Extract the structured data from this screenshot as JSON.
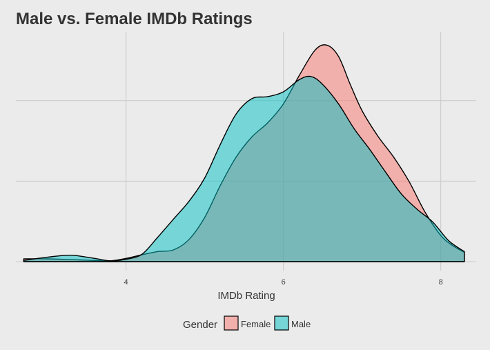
{
  "chart_data": {
    "type": "area",
    "title": "Male vs. Female IMDb Ratings",
    "xlabel": "IMDb Rating",
    "ylabel": "",
    "xlim": [
      2.6,
      8.45
    ],
    "ylim": [
      0,
      0.6
    ],
    "x_ticks": [
      4,
      6,
      8
    ],
    "x_tick_labels": [
      "4",
      "6",
      "8"
    ],
    "y_gridlines": [
      0,
      0.2,
      0.4
    ],
    "grid": true,
    "legend": {
      "title": "Gender",
      "position": "bottom",
      "entries": [
        "Female",
        "Male"
      ]
    },
    "series": [
      {
        "name": "Female",
        "color": "#f8766d",
        "points": [
          [
            2.7,
            0.007
          ],
          [
            3.0,
            0.007
          ],
          [
            3.3,
            0.005
          ],
          [
            3.6,
            0.003
          ],
          [
            3.8,
            0.002
          ],
          [
            4.0,
            0.008
          ],
          [
            4.2,
            0.017
          ],
          [
            4.4,
            0.025
          ],
          [
            4.6,
            0.029
          ],
          [
            4.8,
            0.055
          ],
          [
            5.0,
            0.11
          ],
          [
            5.2,
            0.19
          ],
          [
            5.4,
            0.26
          ],
          [
            5.6,
            0.31
          ],
          [
            5.8,
            0.345
          ],
          [
            6.0,
            0.392
          ],
          [
            6.2,
            0.462
          ],
          [
            6.4,
            0.525
          ],
          [
            6.55,
            0.538
          ],
          [
            6.7,
            0.51
          ],
          [
            6.85,
            0.44
          ],
          [
            7.0,
            0.375
          ],
          [
            7.2,
            0.312
          ],
          [
            7.4,
            0.26
          ],
          [
            7.6,
            0.198
          ],
          [
            7.8,
            0.123
          ],
          [
            8.0,
            0.065
          ],
          [
            8.15,
            0.04
          ],
          [
            8.3,
            0.023
          ]
        ]
      },
      {
        "name": "Male",
        "color": "#00bfc4",
        "points": [
          [
            2.7,
            0.003
          ],
          [
            3.0,
            0.011
          ],
          [
            3.3,
            0.016
          ],
          [
            3.6,
            0.008
          ],
          [
            3.8,
            0.002
          ],
          [
            4.0,
            0.006
          ],
          [
            4.2,
            0.018
          ],
          [
            4.4,
            0.06
          ],
          [
            4.6,
            0.105
          ],
          [
            4.8,
            0.15
          ],
          [
            5.0,
            0.208
          ],
          [
            5.2,
            0.292
          ],
          [
            5.4,
            0.367
          ],
          [
            5.6,
            0.405
          ],
          [
            5.8,
            0.41
          ],
          [
            6.0,
            0.422
          ],
          [
            6.2,
            0.452
          ],
          [
            6.35,
            0.46
          ],
          [
            6.5,
            0.44
          ],
          [
            6.7,
            0.392
          ],
          [
            6.9,
            0.33
          ],
          [
            7.1,
            0.278
          ],
          [
            7.3,
            0.222
          ],
          [
            7.5,
            0.168
          ],
          [
            7.7,
            0.13
          ],
          [
            7.9,
            0.098
          ],
          [
            8.1,
            0.052
          ],
          [
            8.3,
            0.025
          ]
        ]
      }
    ]
  }
}
